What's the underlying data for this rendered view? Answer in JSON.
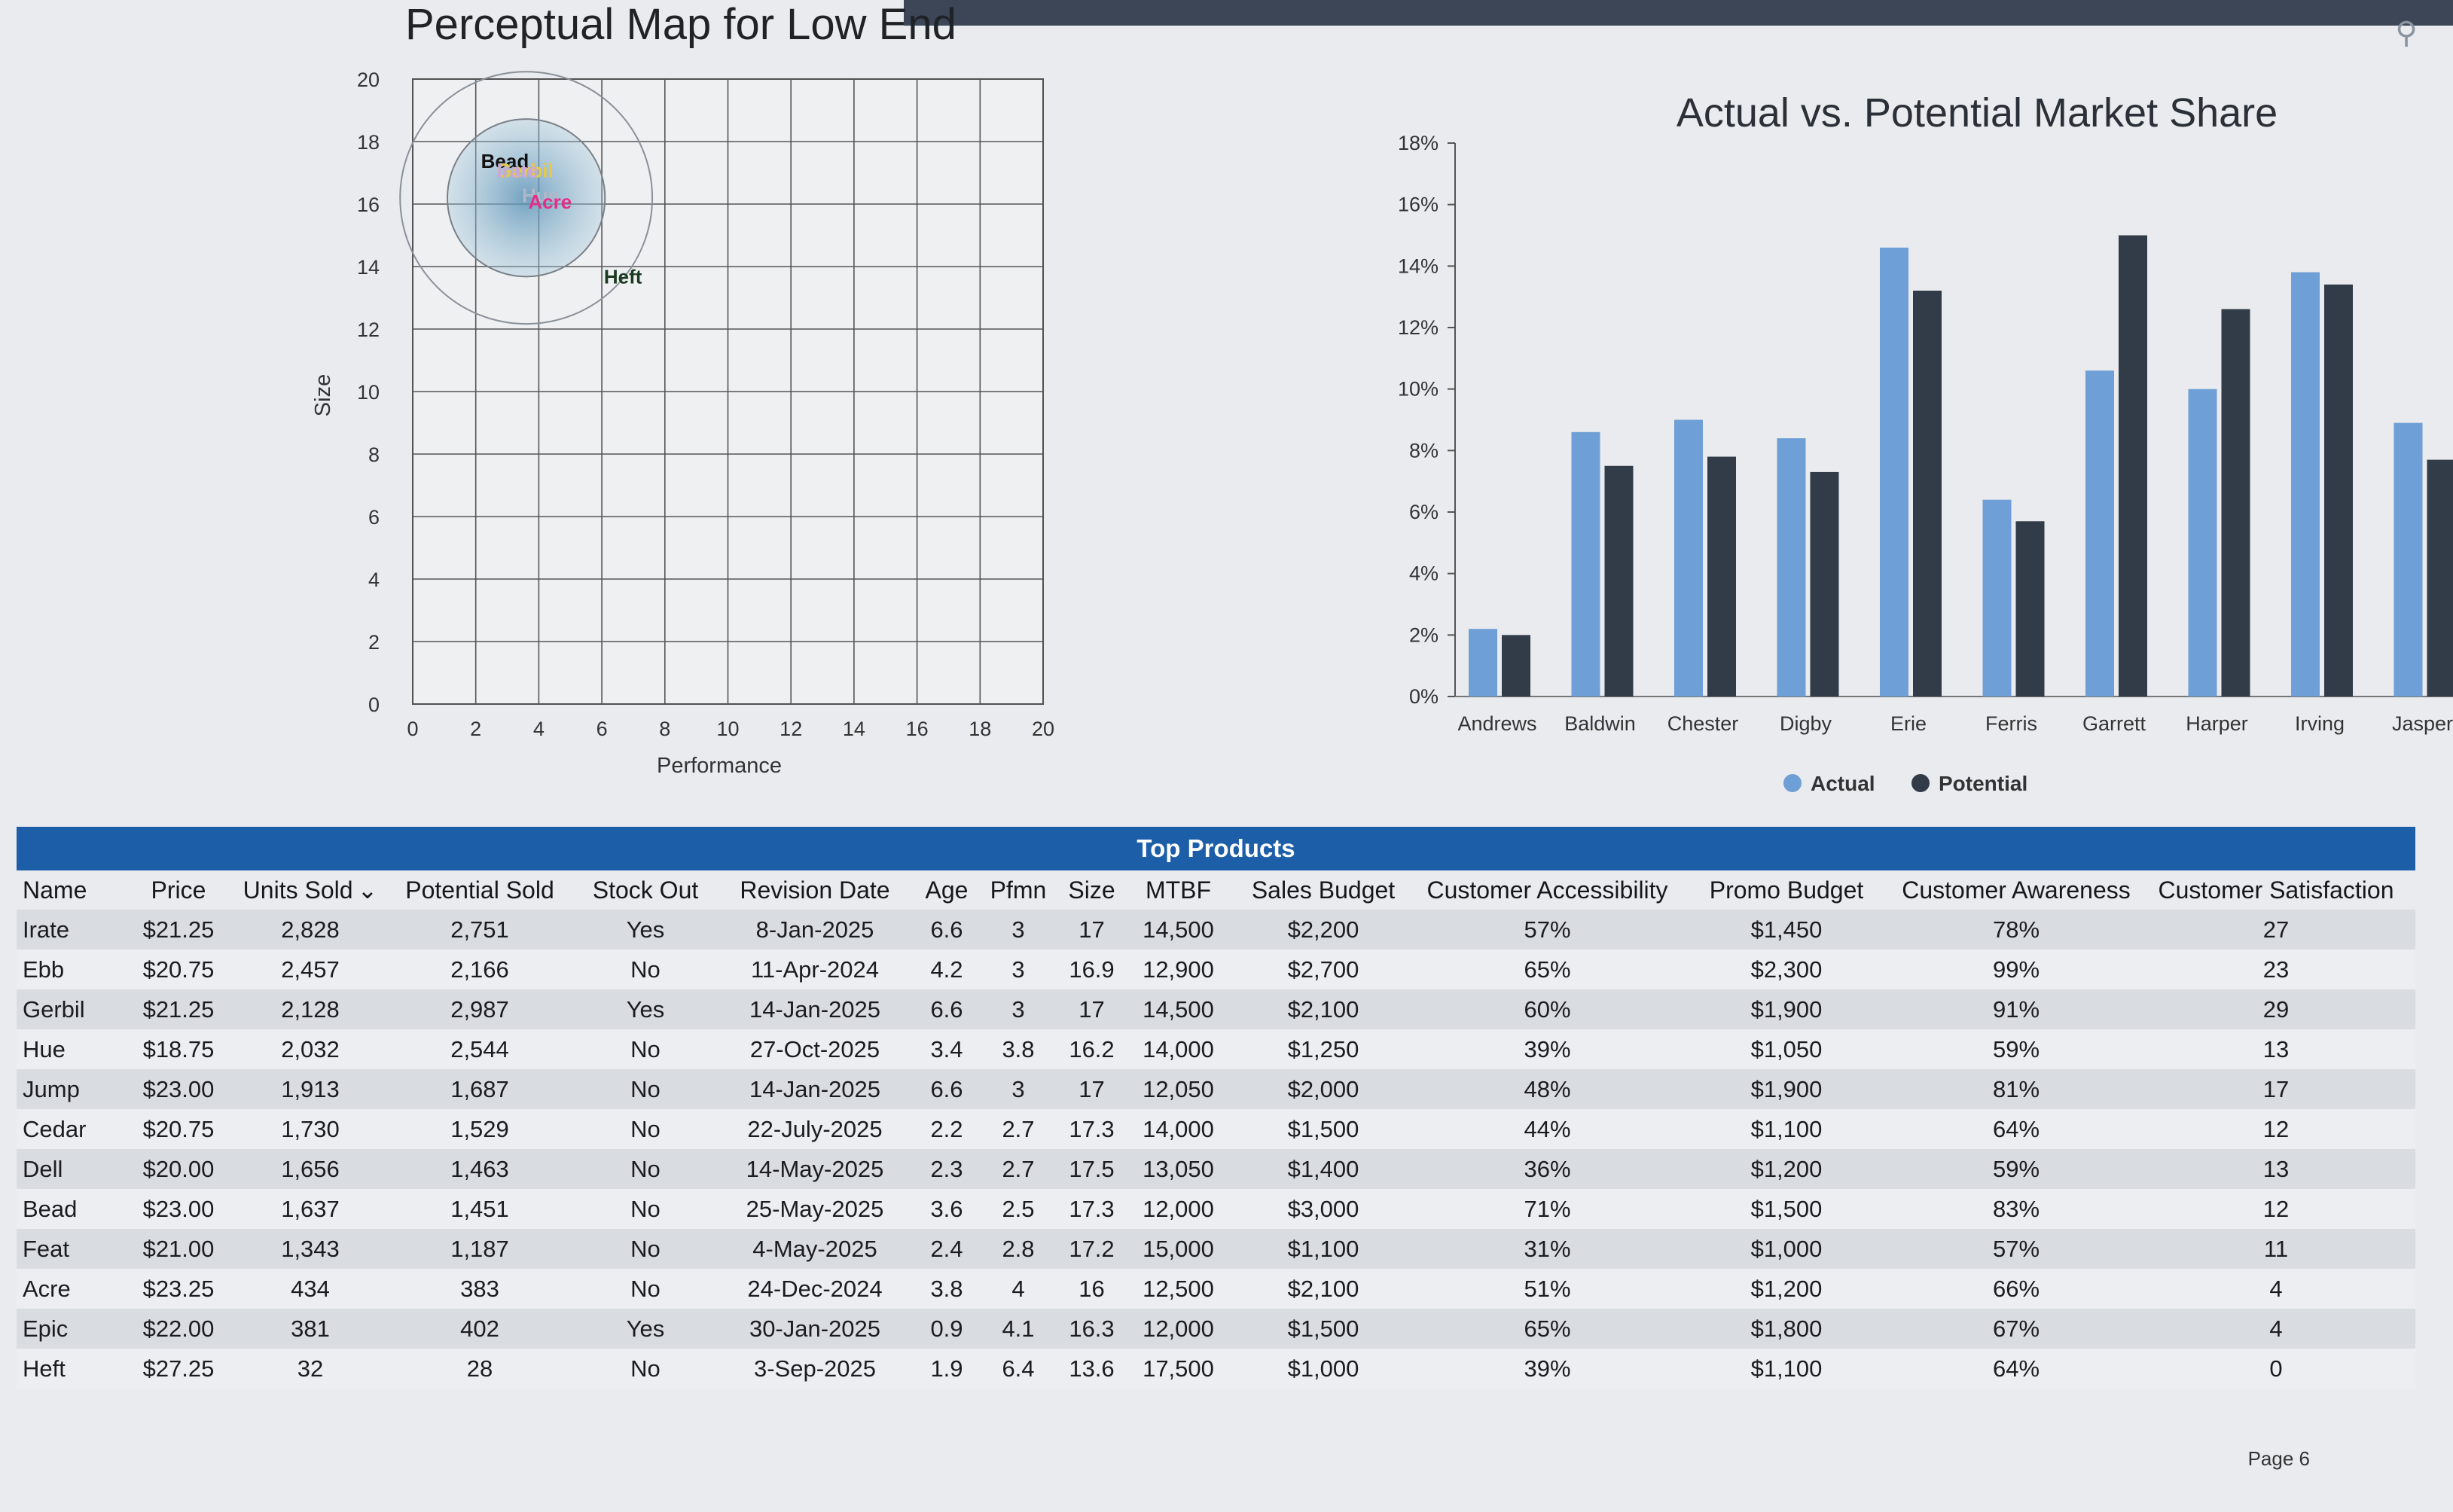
{
  "chart_data": [
    {
      "type": "scatter",
      "title": "Perceptual Map for Low End",
      "xlabel": "Performance",
      "ylabel": "Size",
      "xlim": [
        0,
        20
      ],
      "ylim": [
        0,
        20
      ],
      "xticks": [
        "0",
        "2",
        "4",
        "6",
        "8",
        "10",
        "12",
        "14",
        "16",
        "18",
        "20"
      ],
      "yticks": [
        "0",
        "2",
        "4",
        "6",
        "8",
        "10",
        "12",
        "14",
        "16",
        "18",
        "20"
      ],
      "grid": true,
      "points": [
        {
          "label": "Bead",
          "x": 2.5,
          "y": 17.3,
          "color": "#111111"
        },
        {
          "label": "Gerbil",
          "x": 3.0,
          "y": 17.0,
          "color": "#e6c84a"
        },
        {
          "label": "Irate",
          "x": 3.0,
          "y": 17.0,
          "color": "#c9a8d8"
        },
        {
          "label": "Hue",
          "x": 3.8,
          "y": 16.2,
          "color": "#b0b8c8"
        },
        {
          "label": "Acre",
          "x": 4.0,
          "y": 16.0,
          "color": "#e2308a"
        },
        {
          "label": "Heft",
          "x": 6.4,
          "y": 13.6,
          "color": "#1a3a22"
        }
      ],
      "ideal_spot": {
        "x": 3.6,
        "y": 16.2
      }
    },
    {
      "type": "bar",
      "title": "Actual vs. Potential Market Share",
      "categories": [
        "Andrews",
        "Baldwin",
        "Chester",
        "Digby",
        "Erie",
        "Ferris",
        "Garrett",
        "Harper",
        "Irving",
        "Jasper"
      ],
      "ylim": [
        0,
        18
      ],
      "yticks": [
        "0%",
        "2%",
        "4%",
        "6%",
        "8%",
        "10%",
        "12%",
        "14%",
        "16%",
        "18%"
      ],
      "series": [
        {
          "name": "Actual",
          "color": "#6e9fd6",
          "values": [
            2.2,
            8.6,
            9.0,
            8.4,
            14.6,
            6.4,
            10.6,
            10.0,
            13.8,
            8.9
          ]
        },
        {
          "name": "Potential",
          "color": "#323c48",
          "values": [
            2.0,
            7.5,
            7.8,
            7.3,
            13.2,
            5.7,
            15.0,
            12.6,
            13.4,
            7.7
          ]
        }
      ],
      "legend": "bottom"
    }
  ],
  "table": {
    "title": "Top Products",
    "columns": [
      "Name",
      "Price",
      "Units Sold",
      "Potential Sold",
      "Stock Out",
      "Revision Date",
      "Age",
      "Pfmn",
      "Size",
      "MTBF",
      "Sales Budget",
      "Customer Accessibility",
      "Promo Budget",
      "Customer Awareness",
      "Customer Satisfaction"
    ],
    "sort_indicator": "⌄",
    "rows": [
      [
        "Irate",
        "$21.25",
        "2,828",
        "2,751",
        "Yes",
        "8-Jan-2025",
        "6.6",
        "3",
        "17",
        "14,500",
        "$2,200",
        "57%",
        "$1,450",
        "78%",
        "27"
      ],
      [
        "Ebb",
        "$20.75",
        "2,457",
        "2,166",
        "No",
        "11-Apr-2024",
        "4.2",
        "3",
        "16.9",
        "12,900",
        "$2,700",
        "65%",
        "$2,300",
        "99%",
        "23"
      ],
      [
        "Gerbil",
        "$21.25",
        "2,128",
        "2,987",
        "Yes",
        "14-Jan-2025",
        "6.6",
        "3",
        "17",
        "14,500",
        "$2,100",
        "60%",
        "$1,900",
        "91%",
        "29"
      ],
      [
        "Hue",
        "$18.75",
        "2,032",
        "2,544",
        "No",
        "27-Oct-2025",
        "3.4",
        "3.8",
        "16.2",
        "14,000",
        "$1,250",
        "39%",
        "$1,050",
        "59%",
        "13"
      ],
      [
        "Jump",
        "$23.00",
        "1,913",
        "1,687",
        "No",
        "14-Jan-2025",
        "6.6",
        "3",
        "17",
        "12,050",
        "$2,000",
        "48%",
        "$1,900",
        "81%",
        "17"
      ],
      [
        "Cedar",
        "$20.75",
        "1,730",
        "1,529",
        "No",
        "22-July-2025",
        "2.2",
        "2.7",
        "17.3",
        "14,000",
        "$1,500",
        "44%",
        "$1,100",
        "64%",
        "12"
      ],
      [
        "Dell",
        "$20.00",
        "1,656",
        "1,463",
        "No",
        "14-May-2025",
        "2.3",
        "2.7",
        "17.5",
        "13,050",
        "$1,400",
        "36%",
        "$1,200",
        "59%",
        "13"
      ],
      [
        "Bead",
        "$23.00",
        "1,637",
        "1,451",
        "No",
        "25-May-2025",
        "3.6",
        "2.5",
        "17.3",
        "12,000",
        "$3,000",
        "71%",
        "$1,500",
        "83%",
        "12"
      ],
      [
        "Feat",
        "$21.00",
        "1,343",
        "1,187",
        "No",
        "4-May-2025",
        "2.4",
        "2.8",
        "17.2",
        "15,000",
        "$1,100",
        "31%",
        "$1,000",
        "57%",
        "11"
      ],
      [
        "Acre",
        "$23.25",
        "434",
        "383",
        "No",
        "24-Dec-2024",
        "3.8",
        "4",
        "16",
        "12,500",
        "$2,100",
        "51%",
        "$1,200",
        "66%",
        "4"
      ],
      [
        "Epic",
        "$22.00",
        "381",
        "402",
        "Yes",
        "30-Jan-2025",
        "0.9",
        "4.1",
        "16.3",
        "12,000",
        "$1,500",
        "65%",
        "$1,800",
        "67%",
        "4"
      ],
      [
        "Heft",
        "$27.25",
        "32",
        "28",
        "No",
        "3-Sep-2025",
        "1.9",
        "6.4",
        "13.6",
        "17,500",
        "$1,000",
        "39%",
        "$1,100",
        "64%",
        "0"
      ]
    ]
  },
  "footer": {
    "page": "Page 6"
  },
  "icons": {
    "zoom": "magnifier-icon"
  }
}
